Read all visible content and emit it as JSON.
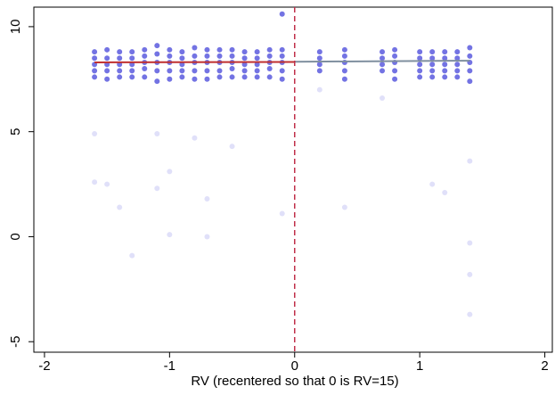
{
  "chart_data": {
    "type": "scatter",
    "xlabel": "RV (recentered so that 0 is RV=15)",
    "xlim": [
      -2.085,
      2.06
    ],
    "ylim": [
      -5.5,
      10.93
    ],
    "xticks": [
      -2,
      -1,
      0,
      1,
      2
    ],
    "yticks": [
      -5,
      0,
      5,
      10
    ],
    "point_color": "#0000cc",
    "cutoff": 0,
    "cutoff_color": "#c0304a",
    "columns": [
      {
        "x": -1.6,
        "y": [
          8.8,
          8.5,
          8.2,
          7.9,
          7.6,
          4.9,
          2.6
        ]
      },
      {
        "x": -1.5,
        "y": [
          8.9,
          8.5,
          8.2,
          7.9,
          7.5,
          2.5
        ]
      },
      {
        "x": -1.4,
        "y": [
          8.8,
          8.5,
          8.2,
          7.9,
          7.6,
          1.4
        ]
      },
      {
        "x": -1.3,
        "y": [
          8.8,
          8.5,
          8.2,
          7.9,
          7.6,
          -0.9
        ]
      },
      {
        "x": -1.2,
        "y": [
          8.9,
          8.6,
          8.3,
          8.0,
          7.6
        ]
      },
      {
        "x": -1.1,
        "y": [
          9.1,
          8.7,
          8.3,
          7.9,
          7.4,
          4.9,
          2.3
        ]
      },
      {
        "x": -1.0,
        "y": [
          8.9,
          8.6,
          8.3,
          7.9,
          7.5,
          3.1,
          0.1
        ]
      },
      {
        "x": -0.9,
        "y": [
          8.8,
          8.5,
          8.2,
          7.9,
          7.6
        ]
      },
      {
        "x": -0.8,
        "y": [
          9.0,
          8.6,
          8.3,
          7.9,
          7.5,
          4.7
        ]
      },
      {
        "x": -0.7,
        "y": [
          8.9,
          8.6,
          8.3,
          7.9,
          7.5,
          1.8,
          0.0
        ]
      },
      {
        "x": -0.6,
        "y": [
          8.9,
          8.6,
          8.3,
          7.9,
          7.6
        ]
      },
      {
        "x": -0.5,
        "y": [
          8.9,
          8.6,
          8.3,
          8.0,
          7.6,
          4.3
        ]
      },
      {
        "x": -0.4,
        "y": [
          8.8,
          8.5,
          8.2,
          7.9,
          7.6
        ]
      },
      {
        "x": -0.3,
        "y": [
          8.8,
          8.5,
          8.2,
          7.9,
          7.6
        ]
      },
      {
        "x": -0.2,
        "y": [
          8.9,
          8.6,
          8.3,
          8.0,
          7.6
        ]
      },
      {
        "x": -0.1,
        "y": [
          10.6,
          8.9,
          8.6,
          8.3,
          7.9,
          7.5,
          1.1
        ]
      },
      {
        "x": 0.2,
        "y": [
          8.8,
          8.5,
          8.2,
          7.9,
          7.0
        ]
      },
      {
        "x": 0.4,
        "y": [
          8.9,
          8.6,
          8.3,
          7.9,
          7.5,
          1.4
        ]
      },
      {
        "x": 0.7,
        "y": [
          8.8,
          8.5,
          8.2,
          7.9,
          6.6
        ]
      },
      {
        "x": 0.8,
        "y": [
          8.9,
          8.6,
          8.3,
          7.9,
          7.5
        ]
      },
      {
        "x": 1.0,
        "y": [
          8.8,
          8.5,
          8.2,
          7.9,
          7.6
        ]
      },
      {
        "x": 1.1,
        "y": [
          8.8,
          8.5,
          8.2,
          7.9,
          7.6,
          2.5
        ]
      },
      {
        "x": 1.2,
        "y": [
          8.8,
          8.5,
          8.2,
          7.9,
          7.6,
          2.1
        ]
      },
      {
        "x": 1.3,
        "y": [
          8.8,
          8.5,
          8.2,
          7.9,
          7.6
        ]
      },
      {
        "x": 1.4,
        "y": [
          9.0,
          8.6,
          8.3,
          7.9,
          7.4,
          3.6,
          -0.3,
          -1.8,
          -3.7
        ]
      }
    ],
    "fits": [
      {
        "x": [
          -1.6,
          0
        ],
        "y": [
          8.3,
          8.32
        ],
        "color": "#c03030"
      },
      {
        "x": [
          0,
          1.4
        ],
        "y": [
          8.33,
          8.38
        ],
        "color": "#7f8f9f"
      }
    ]
  }
}
